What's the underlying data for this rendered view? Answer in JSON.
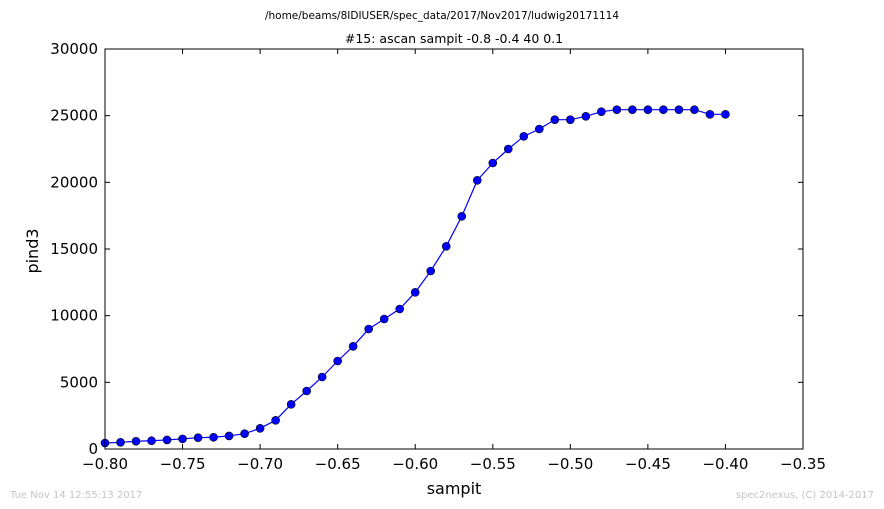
{
  "file_path": "/home/beams/8IDIUSER/spec_data/2017/Nov2017/ludwig20171114",
  "timestamp": "Tue Nov 14 12:55:13 2017",
  "credit": "spec2nexus, (C) 2014-2017",
  "colors": {
    "series": "#0000ff",
    "axes": "#000000",
    "footer": "#c4c4c4"
  },
  "chart_data": {
    "type": "line",
    "title": "#15: ascan  sampit -0.8 -0.4  40 0.1",
    "xlabel": "sampit",
    "ylabel": "pind3",
    "xlim": [
      -0.8,
      -0.35
    ],
    "ylim": [
      0,
      30000
    ],
    "grid": false,
    "marker": "circle",
    "xticks": [
      -0.8,
      -0.75,
      -0.7,
      -0.65,
      -0.6,
      -0.55,
      -0.5,
      -0.45,
      -0.4,
      -0.35
    ],
    "xtick_labels": [
      "−0.80",
      "−0.75",
      "−0.70",
      "−0.65",
      "−0.60",
      "−0.55",
      "−0.50",
      "−0.45",
      "−0.40",
      "−0.35"
    ],
    "yticks": [
      0,
      5000,
      10000,
      15000,
      20000,
      25000,
      30000
    ],
    "ytick_labels": [
      "0",
      "5000",
      "10000",
      "15000",
      "20000",
      "25000",
      "30000"
    ],
    "x": [
      -0.8,
      -0.79,
      -0.78,
      -0.77,
      -0.76,
      -0.75,
      -0.74,
      -0.73,
      -0.72,
      -0.71,
      -0.7,
      -0.69,
      -0.68,
      -0.67,
      -0.66,
      -0.65,
      -0.64,
      -0.63,
      -0.62,
      -0.61,
      -0.6,
      -0.59,
      -0.58,
      -0.57,
      -0.56,
      -0.55,
      -0.54,
      -0.53,
      -0.52,
      -0.51,
      -0.5,
      -0.49,
      -0.48,
      -0.47,
      -0.46,
      -0.45,
      -0.44,
      -0.43,
      -0.42,
      -0.41,
      -0.4
    ],
    "y": [
      450,
      500,
      580,
      620,
      680,
      760,
      850,
      880,
      980,
      1150,
      1550,
      2150,
      3350,
      4350,
      5400,
      6600,
      7700,
      9000,
      9750,
      10500,
      11750,
      13350,
      15200,
      17450,
      20150,
      21450,
      22500,
      23450,
      24000,
      24700,
      24700,
      24950,
      25300,
      25450,
      25450,
      25450,
      25450,
      25450,
      25450,
      25100,
      25100
    ]
  }
}
